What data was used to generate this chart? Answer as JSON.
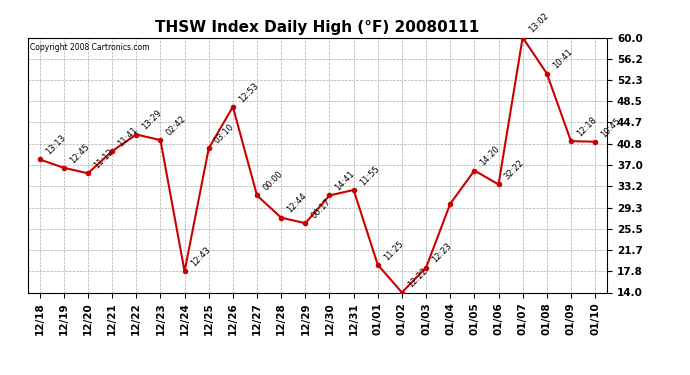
{
  "title": "THSW Index Daily High (°F) 20080111",
  "copyright": "Copyright 2008 Cartronics.com",
  "x_labels": [
    "12/18",
    "12/19",
    "12/20",
    "12/21",
    "12/22",
    "12/23",
    "12/24",
    "12/25",
    "12/26",
    "12/27",
    "12/28",
    "12/29",
    "12/30",
    "12/31",
    "01/01",
    "01/02",
    "01/03",
    "01/04",
    "01/05",
    "01/06",
    "01/07",
    "01/08",
    "01/09",
    "01/10"
  ],
  "y_values": [
    38.0,
    36.5,
    35.5,
    39.5,
    42.5,
    41.5,
    17.8,
    40.0,
    47.5,
    31.5,
    27.5,
    26.5,
    31.5,
    32.5,
    19.0,
    14.0,
    18.5,
    30.0,
    36.0,
    33.5,
    60.0,
    53.5,
    41.3,
    41.2
  ],
  "point_labels": [
    "13:13",
    "12:45",
    "11:12",
    "11:41",
    "13:29",
    "02:42",
    "12:43",
    "03:10",
    "12:53",
    "00:00",
    "12:44",
    "00:17",
    "14:41",
    "11:55",
    "11:25",
    "12:22",
    "12:23",
    "",
    "14:20",
    "32:22",
    "13:02",
    "10:41",
    "12:18",
    "10:45"
  ],
  "y_min": 14.0,
  "y_max": 60.0,
  "y_ticks": [
    14.0,
    17.8,
    21.7,
    25.5,
    29.3,
    33.2,
    37.0,
    40.8,
    44.7,
    48.5,
    52.3,
    56.2,
    60.0
  ],
  "line_color": "#cc0000",
  "marker_color": "#cc0000",
  "background_color": "#ffffff",
  "grid_color": "#aaaaaa",
  "title_fontsize": 11,
  "tick_fontsize": 7.5,
  "point_label_fontsize": 6.0
}
